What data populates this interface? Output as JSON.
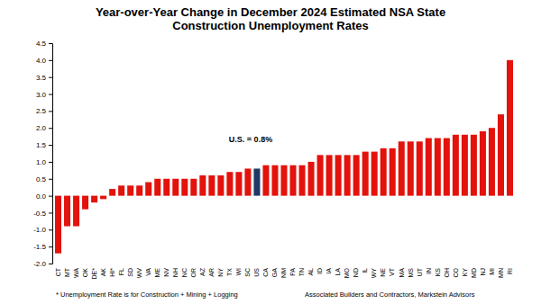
{
  "chart_data": {
    "type": "bar",
    "title": "Year-over-Year Change in December 2024 Estimated NSA State Construction Unemployment Rates",
    "categories": [
      "CT",
      "MT",
      "WA",
      "OK",
      "DE*",
      "AK",
      "HI*",
      "FL",
      "SD",
      "WV",
      "VA",
      "ME",
      "NV",
      "NH",
      "NC",
      "OR",
      "AZ",
      "AR",
      "NY",
      "TX",
      "WI",
      "SC",
      "US",
      "CA",
      "GA",
      "NM",
      "PA",
      "TN",
      "AL",
      "ID",
      "IA",
      "LA",
      "MO",
      "ND",
      "IL",
      "WY",
      "NE",
      "VT",
      "MA",
      "MS",
      "UT",
      "IN",
      "KS",
      "OH",
      "CO",
      "KY",
      "MD",
      "NJ",
      "MI",
      "MN",
      "RI"
    ],
    "values": [
      -1.7,
      -0.9,
      -0.9,
      -0.4,
      -0.2,
      -0.1,
      0.2,
      0.3,
      0.3,
      0.3,
      0.4,
      0.5,
      0.5,
      0.5,
      0.5,
      0.5,
      0.6,
      0.6,
      0.6,
      0.7,
      0.7,
      0.8,
      0.8,
      0.9,
      0.9,
      0.9,
      0.9,
      0.9,
      1.0,
      1.2,
      1.2,
      1.2,
      1.2,
      1.2,
      1.3,
      1.3,
      1.4,
      1.4,
      1.6,
      1.6,
      1.6,
      1.7,
      1.7,
      1.7,
      1.8,
      1.8,
      1.8,
      1.9,
      2.0,
      2.4,
      4.0
    ],
    "colors": [
      "#e3120b",
      "#e3120b",
      "#e3120b",
      "#e3120b",
      "#e3120b",
      "#e3120b",
      "#e3120b",
      "#e3120b",
      "#e3120b",
      "#e3120b",
      "#e3120b",
      "#e3120b",
      "#e3120b",
      "#e3120b",
      "#e3120b",
      "#e3120b",
      "#e3120b",
      "#e3120b",
      "#e3120b",
      "#e3120b",
      "#e3120b",
      "#e3120b",
      "#1f3864",
      "#e3120b",
      "#e3120b",
      "#e3120b",
      "#e3120b",
      "#e3120b",
      "#e3120b",
      "#e3120b",
      "#e3120b",
      "#e3120b",
      "#e3120b",
      "#e3120b",
      "#e3120b",
      "#e3120b",
      "#e3120b",
      "#e3120b",
      "#e3120b",
      "#e3120b",
      "#e3120b",
      "#e3120b",
      "#e3120b",
      "#e3120b",
      "#e3120b",
      "#e3120b",
      "#e3120b",
      "#e3120b",
      "#e3120b",
      "#e3120b",
      "#e3120b"
    ],
    "ylim": [
      -2.0,
      4.5
    ],
    "yticks": [
      {
        "value": -2,
        "label": "-2.0"
      },
      -1.5,
      {
        "value": -1,
        "label": "-1.0"
      },
      -0.5,
      {
        "value": 0,
        "label": "0.0"
      },
      0.5,
      {
        "value": 1,
        "label": "1.0"
      },
      1.5,
      {
        "value": 2,
        "label": "2.0"
      },
      2.5,
      {
        "value": 3,
        "label": "3.0"
      },
      3.5,
      {
        "value": 4,
        "label": "4.0"
      },
      4.5
    ],
    "grid": false,
    "annotation": "U.S. = 0.8%",
    "notes": [
      "* Unemployment Rate is for Construction + Mining + Logging",
      "Associated Builders and Contractors, Markstein Advisors"
    ]
  }
}
